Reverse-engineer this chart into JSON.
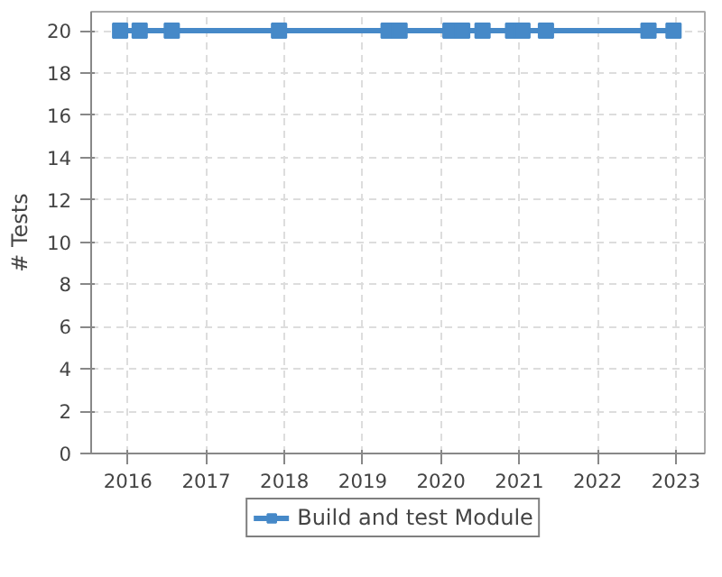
{
  "chart_data": {
    "type": "line",
    "ylabel": "# Tests",
    "x": [
      2015.9,
      2016.15,
      2016.56,
      2017.93,
      2019.33,
      2019.47,
      2020.12,
      2020.27,
      2020.53,
      2020.92,
      2021.04,
      2021.34,
      2022.65,
      2022.97
    ],
    "series": [
      {
        "name": "Build and test Module",
        "color": "#4689c8",
        "values": [
          20,
          20,
          20,
          20,
          20,
          20,
          20,
          20,
          20,
          20,
          20,
          20,
          20,
          20
        ]
      }
    ],
    "xlim": [
      2015.53,
      2023.37
    ],
    "xticks": [
      2016,
      2017,
      2018,
      2019,
      2020,
      2021,
      2022,
      2023
    ],
    "ylim": [
      0,
      20.9
    ],
    "yticks": [
      0,
      2,
      4,
      6,
      8,
      10,
      12,
      14,
      16,
      18,
      20
    ],
    "grid": true,
    "legend": "bottom",
    "marker": "square",
    "line_style": "solid"
  }
}
